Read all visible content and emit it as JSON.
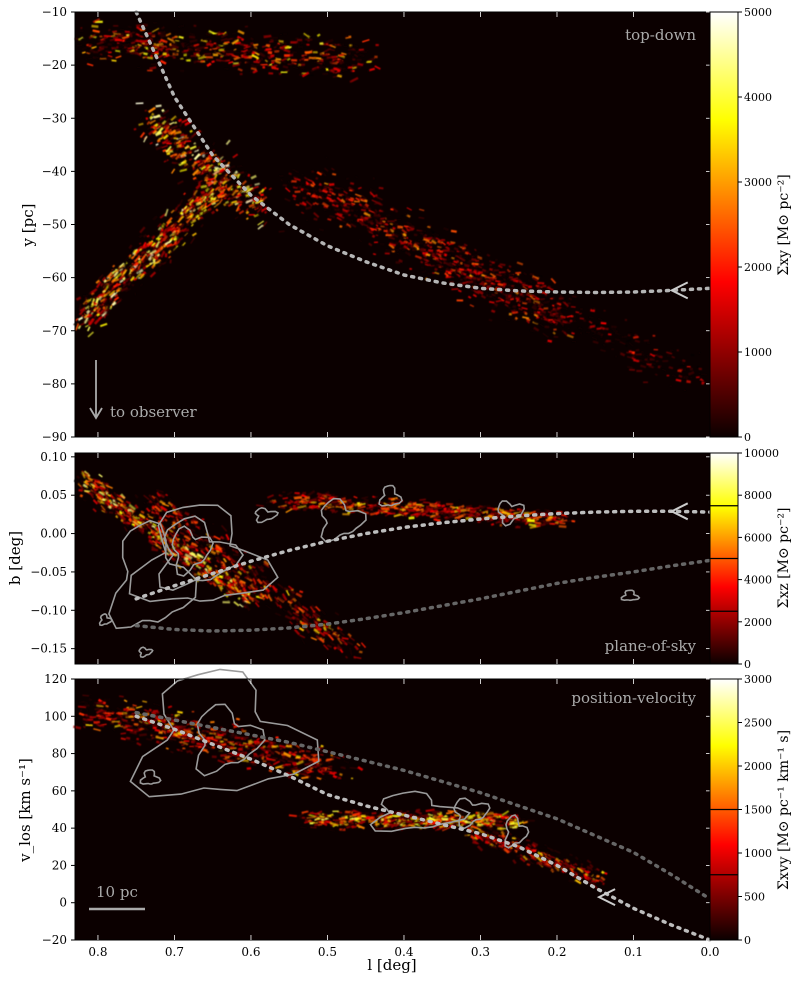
{
  "chart_data": [
    {
      "type": "heatmap",
      "panel": "top-down",
      "annotation": "top-down",
      "ylabel": "y [pc]",
      "xlim": [
        0.83,
        0.0
      ],
      "ylim": [
        -90,
        -10
      ],
      "yticks": [
        -90,
        -80,
        -70,
        -60,
        -50,
        -40,
        -30,
        -20,
        -10
      ],
      "colorbar": {
        "label": "Σxy [M⊙ pc⁻²]",
        "range": [
          0,
          5000
        ],
        "ticks": [
          0,
          1000,
          2000,
          3000,
          4000,
          5000
        ],
        "colormap": "hot"
      },
      "observer_label": "to observer",
      "orbit_path": {
        "l": [
          0.75,
          0.7,
          0.65,
          0.6,
          0.55,
          0.5,
          0.45,
          0.4,
          0.35,
          0.3,
          0.25,
          0.2,
          0.15,
          0.1,
          0.05,
          0.0
        ],
        "y": [
          -10,
          -26,
          -37,
          -44.5,
          -50,
          -54,
          -57,
          -59.5,
          -61,
          -62,
          -62.5,
          -62.7,
          -62.8,
          -62.7,
          -62.4,
          -62
        ]
      }
    },
    {
      "type": "heatmap",
      "panel": "plane-of-sky",
      "annotation": "plane-of-sky",
      "ylabel": "b [deg]",
      "xlim": [
        0.83,
        0.0
      ],
      "ylim": [
        -0.17,
        0.105
      ],
      "yticks": [
        -0.15,
        -0.1,
        -0.05,
        0.0,
        0.05,
        0.1
      ],
      "ytick_labels": [
        "−0.15",
        "−0.10",
        "−0.05",
        "0.00",
        "0.05",
        "0.10"
      ],
      "colorbar": {
        "label": "Σxz [M⊙ pc⁻²]",
        "range": [
          0,
          10000
        ],
        "ticks": [
          0,
          2000,
          4000,
          6000,
          8000,
          10000
        ],
        "colormap": "hot",
        "contour_levels": [
          2500,
          5000,
          7500
        ]
      },
      "near_path": {
        "l": [
          0.75,
          0.7,
          0.65,
          0.6,
          0.55,
          0.5,
          0.45,
          0.4,
          0.35,
          0.3,
          0.25,
          0.2,
          0.15,
          0.1,
          0.05,
          0.0
        ],
        "b": [
          -0.085,
          -0.068,
          -0.052,
          -0.036,
          -0.022,
          -0.01,
          0.0,
          0.008,
          0.014,
          0.019,
          0.023,
          0.026,
          0.028,
          0.029,
          0.029,
          0.028
        ]
      },
      "far_path": {
        "l": [
          0.75,
          0.7,
          0.65,
          0.6,
          0.55,
          0.5,
          0.45,
          0.4,
          0.35,
          0.3,
          0.25,
          0.2,
          0.15,
          0.1,
          0.05,
          0.0
        ],
        "b": [
          -0.12,
          -0.125,
          -0.127,
          -0.126,
          -0.123,
          -0.118,
          -0.111,
          -0.103,
          -0.094,
          -0.085,
          -0.075,
          -0.065,
          -0.057,
          -0.05,
          -0.042,
          -0.035
        ]
      }
    },
    {
      "type": "heatmap",
      "panel": "position-velocity",
      "annotation": "position-velocity",
      "ylabel": "v_los [km s⁻¹]",
      "xlabel": "l [deg]",
      "xlim": [
        0.83,
        0.0
      ],
      "ylim": [
        -20,
        120
      ],
      "yticks": [
        -20,
        0,
        20,
        40,
        60,
        80,
        100,
        120
      ],
      "xticks": [
        0.8,
        0.7,
        0.6,
        0.5,
        0.4,
        0.3,
        0.2,
        0.1,
        0.0
      ],
      "xtick_labels": [
        "0.8",
        "0.7",
        "0.6",
        "0.5",
        "0.4",
        "0.3",
        "0.2",
        "0.1",
        "0.0"
      ],
      "colorbar": {
        "label": "Σxvy [M⊙ pc⁻¹ km⁻¹ s]",
        "range": [
          0,
          3000
        ],
        "ticks": [
          0,
          500,
          1000,
          1500,
          2000,
          2500,
          3000
        ],
        "colormap": "hot",
        "contour_levels": [
          750,
          1500
        ]
      },
      "scalebar_label": "10 pc",
      "near_path": {
        "l": [
          0.75,
          0.7,
          0.65,
          0.6,
          0.55,
          0.5,
          0.45,
          0.4,
          0.35,
          0.3,
          0.25,
          0.2,
          0.15,
          0.1,
          0.05,
          0.0
        ],
        "v": [
          100,
          93,
          85,
          77,
          68,
          58,
          52,
          47,
          42,
          37,
          30,
          20,
          8,
          -3,
          -12,
          -20
        ]
      },
      "far_path": {
        "l": [
          0.75,
          0.7,
          0.65,
          0.6,
          0.55,
          0.5,
          0.45,
          0.4,
          0.35,
          0.3,
          0.25,
          0.2,
          0.15,
          0.1,
          0.05,
          0.0
        ],
        "v": [
          102,
          98,
          94,
          90,
          86,
          81,
          76,
          71,
          65,
          59,
          52,
          45,
          36,
          27,
          15,
          2
        ]
      }
    }
  ]
}
